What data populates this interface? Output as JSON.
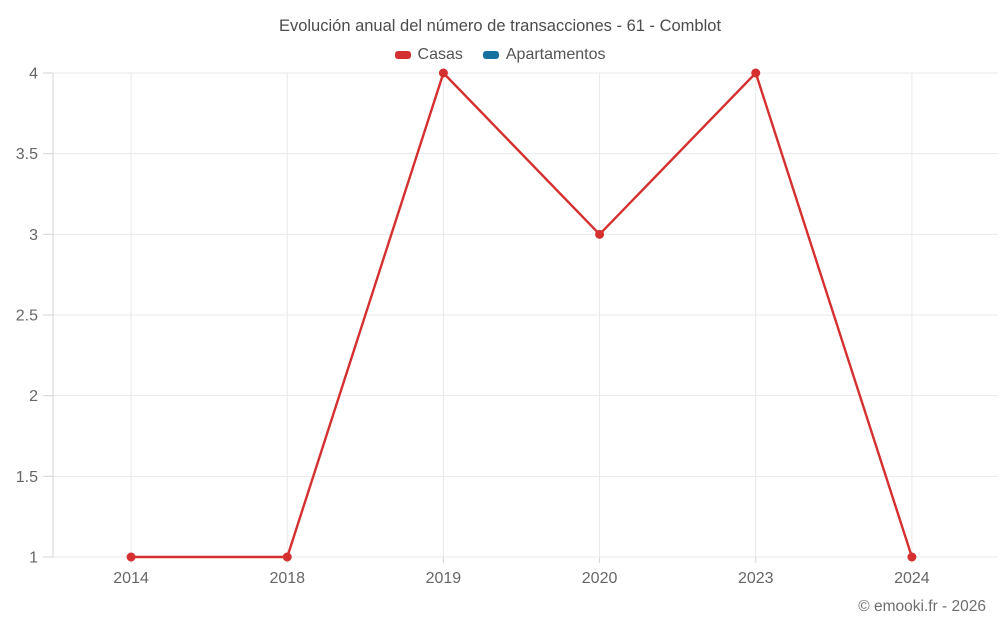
{
  "chart": {
    "title": "Evolución anual del número de transacciones - 61 - Comblot"
  },
  "chart_data": {
    "type": "line",
    "title": "Evolución anual del número de transacciones - 61 - Comblot",
    "categories": [
      "2014",
      "2018",
      "2019",
      "2020",
      "2023",
      "2024"
    ],
    "series": [
      {
        "name": "Casas",
        "color": "#d4302f",
        "values": [
          1,
          1,
          4,
          3,
          4,
          1
        ]
      },
      {
        "name": "Apartamentos",
        "color": "#17719e",
        "values": []
      }
    ],
    "xlabel": "",
    "ylabel": "",
    "ylim": [
      1,
      4
    ],
    "yticks": [
      "1",
      "1.5",
      "2",
      "2.5",
      "3",
      "3.5",
      "4"
    ],
    "grid": true,
    "legend_position": "top",
    "marker": "circle"
  },
  "colors": {
    "casas": "#d4302f",
    "apartamentos": "#17719e",
    "gridline": "#e9e9e9",
    "axis": "#d4d4d4",
    "tick_label": "#666666",
    "title_text": "#4c4c4c"
  },
  "footer": {
    "copyright": "© emooki.fr - 2026"
  }
}
